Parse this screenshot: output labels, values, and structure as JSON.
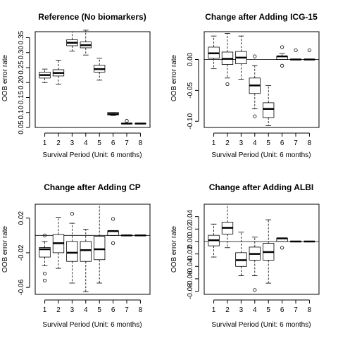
{
  "chart_data": [
    {
      "type": "boxplot",
      "title": "Reference (No biomarkers)",
      "xlabel": "Survival Period (Unit: 6 months)",
      "ylabel": "OOB error rate",
      "categories": [
        "1",
        "2",
        "3",
        "4",
        "5",
        "6",
        "7",
        "8"
      ],
      "ylim": [
        0.05,
        0.37
      ],
      "yticks": [
        0.05,
        0.15,
        0.25,
        0.35
      ],
      "ytick_labels": [
        "0.05",
        "0.15",
        "0.25",
        "0.35"
      ],
      "minor_yticks": [
        0.1,
        0.2,
        0.3
      ],
      "minor_ytick_labels": [
        "0.10",
        "0.20",
        "0.30"
      ],
      "reference_line": null,
      "boxes": [
        {
          "whisker_low": 0.2,
          "q1": 0.215,
          "median": 0.225,
          "q3": 0.235,
          "whisker_high": 0.245,
          "outliers": []
        },
        {
          "whisker_low": 0.195,
          "q1": 0.222,
          "median": 0.232,
          "q3": 0.243,
          "whisker_high": 0.275,
          "outliers": []
        },
        {
          "whisker_low": 0.305,
          "q1": 0.323,
          "median": 0.333,
          "q3": 0.343,
          "whisker_high": 0.37,
          "outliers": []
        },
        {
          "whisker_low": 0.292,
          "q1": 0.316,
          "median": 0.325,
          "q3": 0.336,
          "whisker_high": 0.375,
          "outliers": []
        },
        {
          "whisker_low": 0.208,
          "q1": 0.235,
          "median": 0.245,
          "q3": 0.258,
          "whisker_high": 0.282,
          "outliers": []
        },
        {
          "whisker_low": 0.09,
          "q1": 0.092,
          "median": 0.095,
          "q3": 0.1,
          "whisker_high": 0.1,
          "outliers": []
        },
        {
          "whisker_low": 0.063,
          "q1": 0.063,
          "median": 0.063,
          "q3": 0.063,
          "whisker_high": 0.063,
          "outliers": [
            0.072
          ]
        },
        {
          "whisker_low": 0.063,
          "q1": 0.063,
          "median": 0.063,
          "q3": 0.063,
          "whisker_high": 0.063,
          "outliers": []
        }
      ]
    },
    {
      "type": "boxplot",
      "title": "Change after Adding ICG-15",
      "xlabel": "Survival Period (Unit: 6 months)",
      "ylabel": "OOB error rate",
      "categories": [
        "1",
        "2",
        "3",
        "4",
        "5",
        "6",
        "7",
        "8"
      ],
      "ylim": [
        -0.11,
        0.045
      ],
      "yticks": [
        -0.1,
        -0.05,
        0.0
      ],
      "ytick_labels": [
        "-0.10",
        "-0.05",
        "0.00"
      ],
      "minor_yticks": [],
      "minor_ytick_labels": [],
      "reference_line": 0,
      "boxes": [
        {
          "whisker_low": -0.015,
          "q1": 0.002,
          "median": 0.01,
          "q3": 0.02,
          "whisker_high": 0.038,
          "outliers": []
        },
        {
          "whisker_low": -0.03,
          "q1": -0.008,
          "median": 0.001,
          "q3": 0.012,
          "whisker_high": 0.042,
          "outliers": [
            -0.04
          ]
        },
        {
          "whisker_low": -0.032,
          "q1": -0.007,
          "median": 0.003,
          "q3": 0.013,
          "whisker_high": 0.038,
          "outliers": []
        },
        {
          "whisker_low": -0.08,
          "q1": -0.055,
          "median": -0.042,
          "q3": -0.03,
          "whisker_high": -0.01,
          "outliers": [
            0.005,
            -0.092
          ]
        },
        {
          "whisker_low": -0.107,
          "q1": -0.094,
          "median": -0.08,
          "q3": -0.07,
          "whisker_high": -0.042,
          "outliers": []
        },
        {
          "whisker_low": 0.0,
          "q1": 0.0,
          "median": 0.005,
          "q3": 0.005,
          "whisker_high": 0.01,
          "outliers": [
            0.02,
            -0.01
          ]
        },
        {
          "whisker_low": 0.0,
          "q1": 0.0,
          "median": 0.0,
          "q3": 0.0,
          "whisker_high": 0.0,
          "outliers": [
            0.015
          ]
        },
        {
          "whisker_low": 0.0,
          "q1": 0.0,
          "median": 0.0,
          "q3": 0.0,
          "whisker_high": 0.0,
          "outliers": [
            0.015
          ]
        }
      ]
    },
    {
      "type": "boxplot",
      "title": "Change after Adding CP",
      "xlabel": "Survival Period (Unit: 6 months)",
      "ylabel": "OOB error rate",
      "categories": [
        "1",
        "2",
        "3",
        "4",
        "5",
        "6",
        "7",
        "8"
      ],
      "ylim": [
        -0.068,
        0.036
      ],
      "yticks": [
        -0.06,
        -0.02,
        0.02
      ],
      "ytick_labels": [
        "-0.06",
        "-0.02",
        "0.02"
      ],
      "minor_yticks": [],
      "minor_ytick_labels": [],
      "reference_line": 0,
      "boxes": [
        {
          "whisker_low": -0.035,
          "q1": -0.025,
          "median": -0.016,
          "q3": -0.014,
          "whisker_high": -0.007,
          "outliers": [
            0.0,
            -0.044,
            -0.052
          ]
        },
        {
          "whisker_low": -0.038,
          "q1": -0.02,
          "median": -0.009,
          "q3": 0.001,
          "whisker_high": 0.021,
          "outliers": []
        },
        {
          "whisker_low": -0.055,
          "q1": -0.03,
          "median": -0.02,
          "q3": -0.007,
          "whisker_high": 0.014,
          "outliers": [
            0.025
          ]
        },
        {
          "whisker_low": -0.065,
          "q1": -0.03,
          "median": -0.017,
          "q3": -0.007,
          "whisker_high": 0.007,
          "outliers": []
        },
        {
          "whisker_low": -0.055,
          "q1": -0.028,
          "median": -0.016,
          "q3": -0.001,
          "whisker_high": 0.036,
          "outliers": []
        },
        {
          "whisker_low": 0.0,
          "q1": 0.0,
          "median": 0.005,
          "q3": 0.005,
          "whisker_high": 0.005,
          "outliers": [
            0.019,
            -0.009
          ]
        },
        {
          "whisker_low": 0.0,
          "q1": 0.0,
          "median": 0.0,
          "q3": 0.0,
          "whisker_high": 0.0,
          "outliers": []
        },
        {
          "whisker_low": 0.0,
          "q1": 0.0,
          "median": 0.0,
          "q3": 0.0,
          "whisker_high": 0.0,
          "outliers": []
        }
      ]
    },
    {
      "type": "boxplot",
      "title": "Change after Adding ALBI",
      "xlabel": "Survival Period (Unit: 6 months)",
      "ylabel": "OOB error rate",
      "categories": [
        "1",
        "2",
        "3",
        "4",
        "5",
        "6",
        "7",
        "8"
      ],
      "ylim": [
        -0.085,
        0.06
      ],
      "yticks": [
        -0.08,
        -0.06,
        -0.04,
        -0.02,
        0.0,
        0.02,
        0.04
      ],
      "ytick_labels": [
        "-0.08",
        "-0.06",
        "-0.04",
        "-0.02",
        "0.00",
        "0.02",
        "0.04"
      ],
      "minor_yticks": [],
      "minor_ytick_labels": [],
      "reference_line": 0,
      "boxes": [
        {
          "whisker_low": -0.025,
          "q1": -0.007,
          "median": 0.002,
          "q3": 0.01,
          "whisker_high": 0.028,
          "outliers": []
        },
        {
          "whisker_low": -0.01,
          "q1": 0.012,
          "median": 0.022,
          "q3": 0.031,
          "whisker_high": 0.06,
          "outliers": []
        },
        {
          "whisker_low": -0.055,
          "q1": -0.04,
          "median": -0.03,
          "q3": -0.018,
          "whisker_high": 0.015,
          "outliers": []
        },
        {
          "whisker_low": -0.055,
          "q1": -0.03,
          "median": -0.02,
          "q3": -0.009,
          "whisker_high": 0.007,
          "outliers": [
            -0.078
          ]
        },
        {
          "whisker_low": -0.067,
          "q1": -0.03,
          "median": -0.017,
          "q3": -0.003,
          "whisker_high": 0.035,
          "outliers": []
        },
        {
          "whisker_low": 0.0,
          "q1": 0.0,
          "median": 0.005,
          "q3": 0.005,
          "whisker_high": 0.005,
          "outliers": [
            -0.01
          ]
        },
        {
          "whisker_low": 0.0,
          "q1": 0.0,
          "median": 0.0,
          "q3": 0.0,
          "whisker_high": 0.0,
          "outliers": []
        },
        {
          "whisker_low": 0.0,
          "q1": 0.0,
          "median": 0.0,
          "q3": 0.0,
          "whisker_high": 0.0,
          "outliers": []
        }
      ]
    }
  ]
}
